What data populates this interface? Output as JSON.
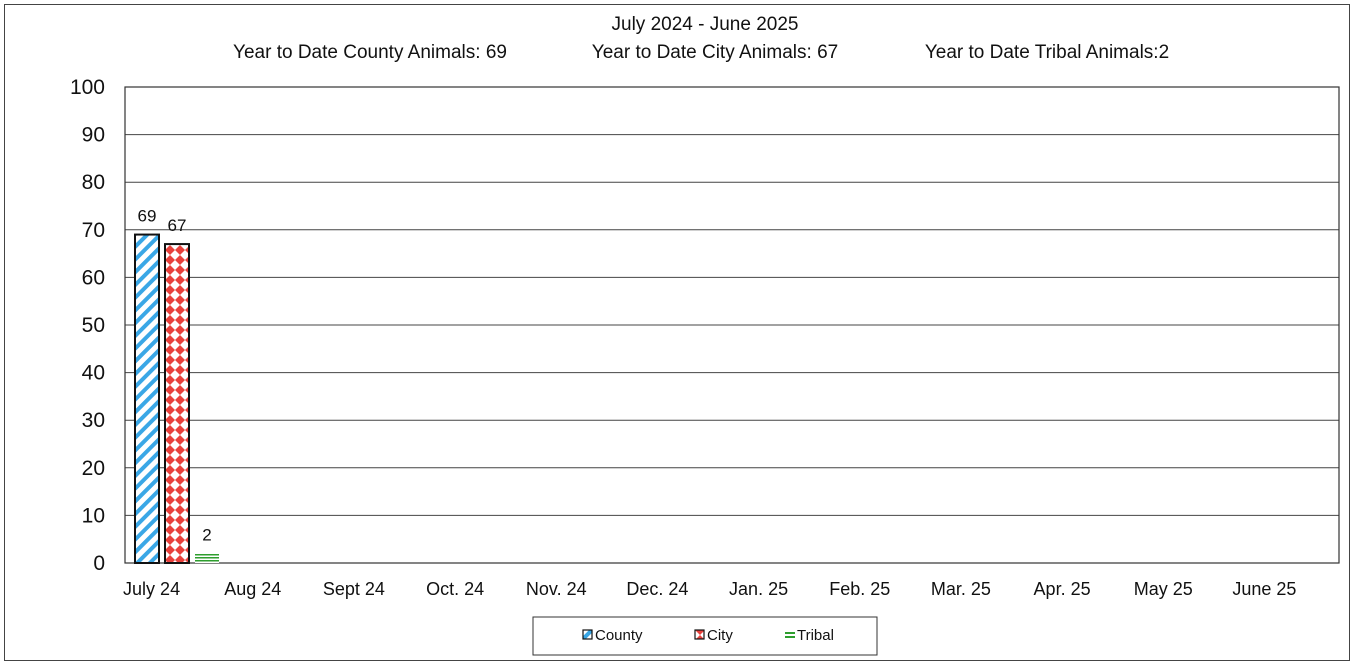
{
  "chart_data": {
    "type": "bar",
    "title": "July 2024 - June 2025",
    "subtitle_items": [
      "Year to Date County Animals: 69",
      "Year to Date City Animals: 67",
      "Year to Date Tribal Animals:2"
    ],
    "categories": [
      "July 24",
      "Aug 24",
      "Sept 24",
      "Oct. 24",
      "Nov. 24",
      "Dec. 24",
      "Jan. 25",
      "Feb. 25",
      "Mar. 25",
      "Apr. 25",
      "May 25",
      "June 25"
    ],
    "series": [
      {
        "name": "County",
        "values": [
          69,
          null,
          null,
          null,
          null,
          null,
          null,
          null,
          null,
          null,
          null,
          null
        ],
        "color": "#3aa7e6",
        "pattern": "diagonal-stripes"
      },
      {
        "name": "City",
        "values": [
          67,
          null,
          null,
          null,
          null,
          null,
          null,
          null,
          null,
          null,
          null,
          null
        ],
        "color": "#e8413c",
        "pattern": "diamonds"
      },
      {
        "name": "Tribal",
        "values": [
          2,
          null,
          null,
          null,
          null,
          null,
          null,
          null,
          null,
          null,
          null,
          null
        ],
        "color": "#2e9e2e",
        "pattern": "horizontal-lines"
      }
    ],
    "ylim": [
      0,
      100
    ],
    "yticks": [
      0,
      10,
      20,
      30,
      40,
      50,
      60,
      70,
      80,
      90,
      100
    ],
    "grid": true,
    "legend_position": "bottom-center",
    "data_labels": [
      "69",
      "67",
      "2"
    ]
  }
}
